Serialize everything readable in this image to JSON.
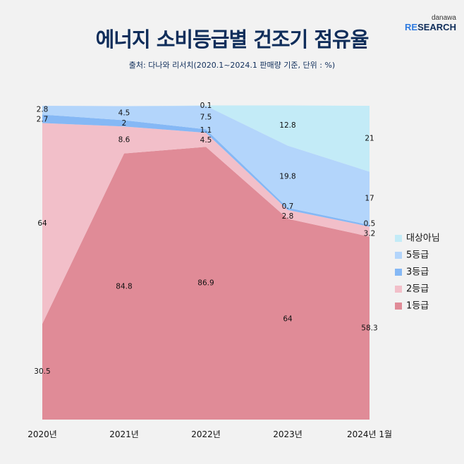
{
  "title": "에너지 소비등급별 건조기 점유율",
  "subtitle": "출처: 다나와 리서치(2020.1~2024.1 판매량 기준, 단위 : %)",
  "logo": {
    "top": "danawa",
    "bottom_accent": "RE",
    "bottom_rest": "SEARCH"
  },
  "chart_data": {
    "type": "area",
    "stacked": true,
    "categories": [
      "2020년",
      "2021년",
      "2022년",
      "2023년",
      "2024년 1월"
    ],
    "ylim": [
      0,
      100
    ],
    "grid": false,
    "legend_position": "right",
    "series": [
      {
        "name": "1등급",
        "color": "#e08b97",
        "values": [
          30.5,
          84.8,
          86.9,
          64,
          58.3
        ]
      },
      {
        "name": "2등급",
        "color": "#f2bfc9",
        "values": [
          64,
          8.6,
          4.5,
          2.8,
          3.2
        ]
      },
      {
        "name": "3등급",
        "color": "#85b8f5",
        "values": [
          2.7,
          2.0,
          1.1,
          0.7,
          0.5
        ]
      },
      {
        "name": "5등급",
        "color": "#b3d5fb",
        "values": [
          2.8,
          4.5,
          7.5,
          19.8,
          17
        ]
      },
      {
        "name": "대상아님",
        "color": "#c3ebf7",
        "values": [
          0,
          0,
          0.1,
          12.8,
          21
        ]
      }
    ]
  }
}
